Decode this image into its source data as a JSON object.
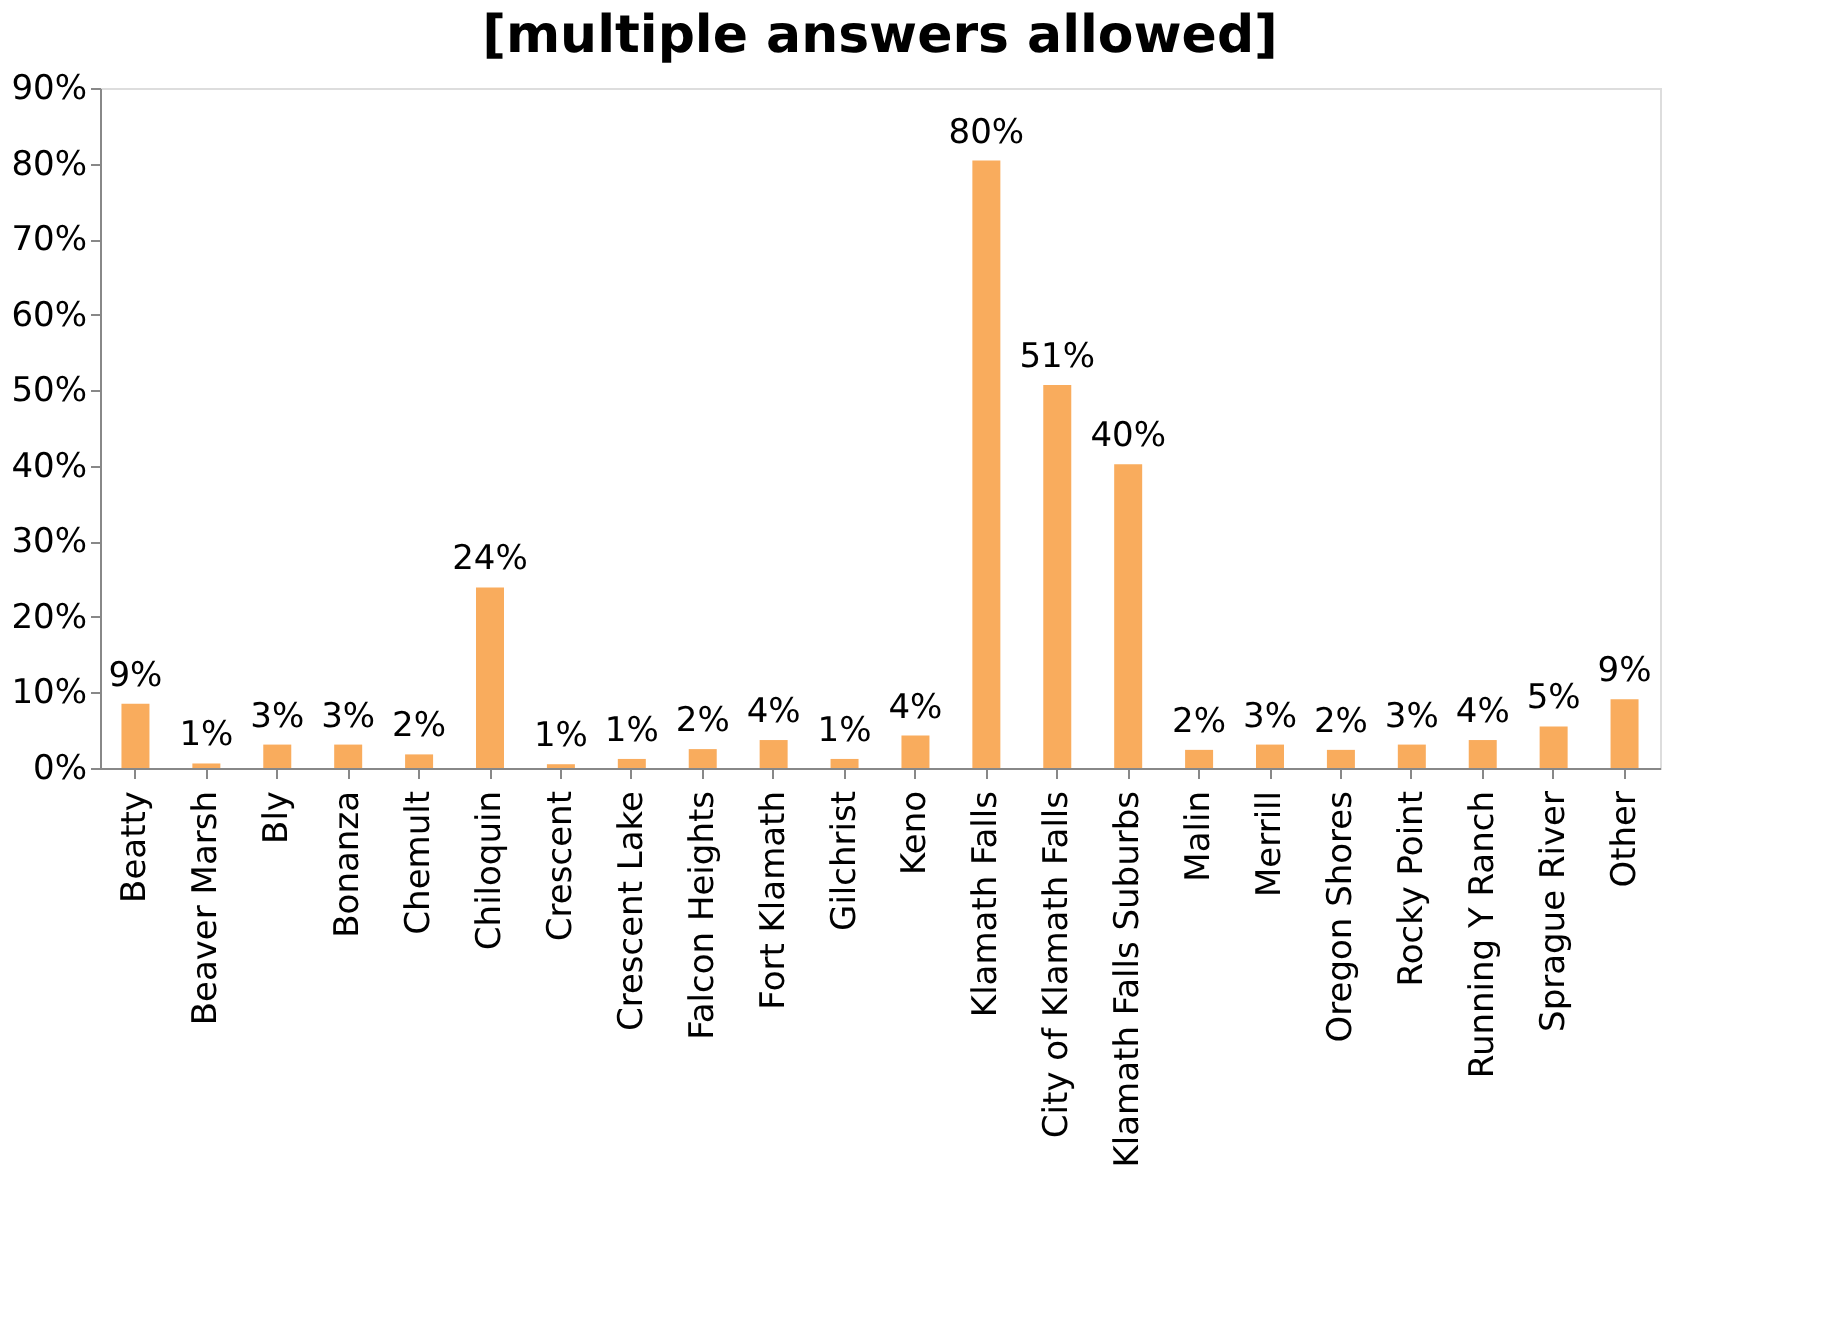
{
  "chart_data": {
    "type": "bar",
    "title": "[multiple answers allowed]",
    "categories": [
      "Beatty",
      "Beaver Marsh",
      "Bly",
      "Bonanza",
      "Chemult",
      "Chiloquin",
      "Crescent",
      "Crescent Lake",
      "Falcon Heights",
      "Fort Klamath",
      "Gilchrist",
      "Keno",
      "Klamath Falls",
      "City of Klamath Falls",
      "Klamath Falls Suburbs",
      "Malin",
      "Merrill",
      "Oregon Shores",
      "Rocky Point",
      "Running Y Ranch",
      "Sprague River",
      "Other"
    ],
    "values": [
      8.5,
      0.6,
      3.1,
      3.1,
      1.8,
      23.9,
      0.5,
      1.2,
      2.5,
      3.7,
      1.2,
      4.3,
      80.4,
      50.7,
      40.2,
      2.4,
      3.1,
      2.4,
      3.1,
      3.7,
      5.5,
      9.1
    ],
    "value_labels": [
      "9%",
      "1%",
      "3%",
      "3%",
      "2%",
      "24%",
      "1%",
      "1%",
      "2%",
      "4%",
      "1%",
      "4%",
      "80%",
      "51%",
      "40%",
      "2%",
      "3%",
      "2%",
      "3%",
      "4%",
      "5%",
      "9%"
    ],
    "color": "#f9ac5d",
    "ylim": [
      0,
      90
    ],
    "yticks": [
      {
        "value": 0,
        "label": "0%"
      },
      {
        "value": 10,
        "label": "10%"
      },
      {
        "value": 20,
        "label": "20%"
      },
      {
        "value": 30,
        "label": "30%"
      },
      {
        "value": 40,
        "label": "40%"
      },
      {
        "value": 50,
        "label": "50%"
      },
      {
        "value": 60,
        "label": "60%"
      },
      {
        "value": 70,
        "label": "70%"
      },
      {
        "value": 80,
        "label": "80%"
      },
      {
        "value": 90,
        "label": "90%"
      }
    ],
    "grid": false
  }
}
